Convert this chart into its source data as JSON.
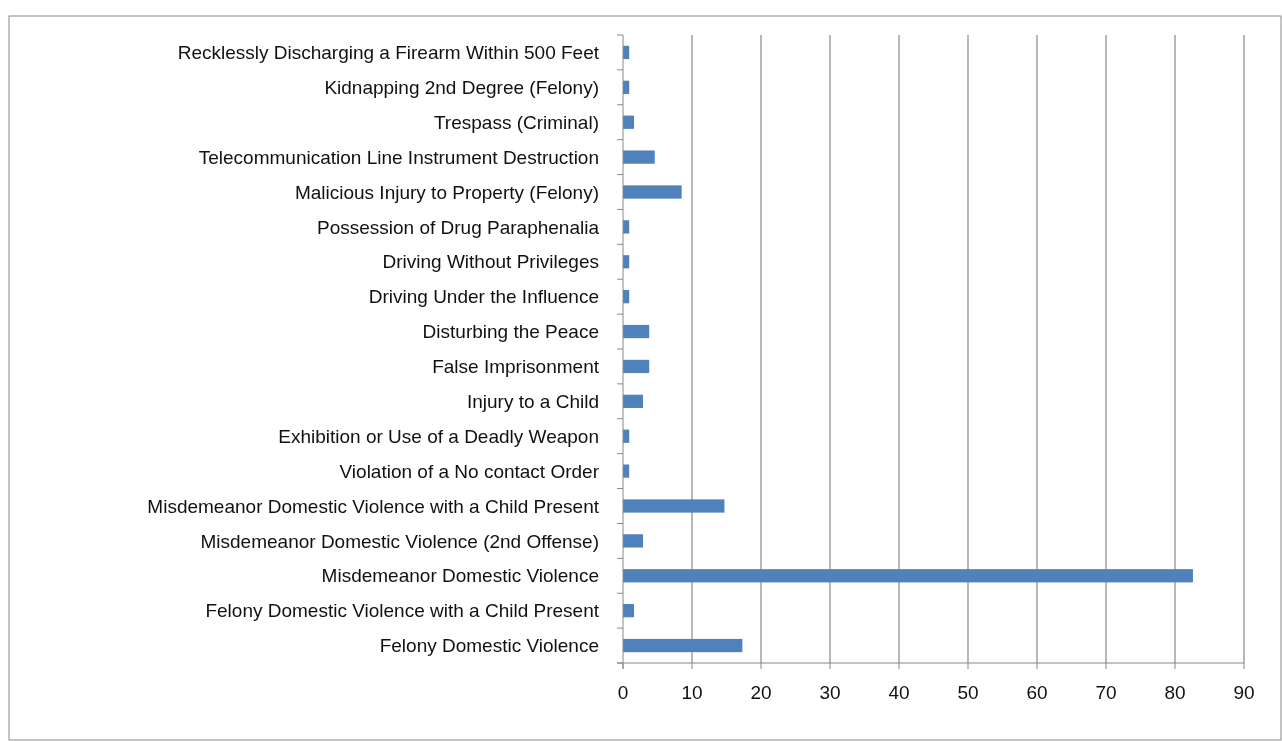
{
  "chart_data": {
    "type": "bar",
    "orientation": "horizontal",
    "categories": [
      "Recklessly Discharging a Firearm Within 500 Feet",
      "Kidnapping  2nd Degree (Felony)",
      "Trespass (Criminal)",
      "Telecommunication Line Instrument Destruction",
      "Malicious Injury to Property (Felony)",
      "Possession of Drug Paraphenalia",
      "Driving Without Privileges",
      "Driving Under the Influence",
      "Disturbing the Peace",
      "False Imprisonment",
      "Injury to a Child",
      "Exhibition or Use of a Deadly Weapon",
      "Violation of a No contact Order",
      "Misdemeanor Domestic Violence with a Child Present",
      "Misdemeanor Domestic Violence (2nd Offense)",
      "Misdemeanor Domestic Violence",
      "Felony Domestic Violence with a Child Present",
      "Felony Domestic Violence"
    ],
    "values": [
      0.9,
      0.9,
      1.6,
      4.6,
      8.5,
      0.9,
      0.9,
      0.9,
      3.8,
      3.8,
      2.9,
      0.9,
      0.9,
      14.7,
      2.9,
      82.6,
      1.6,
      17.3
    ],
    "color": "#4f81bd",
    "xlim": [
      0,
      90
    ],
    "xticks": [
      0,
      10,
      20,
      30,
      40,
      50,
      60,
      70,
      80,
      90
    ],
    "grid": "x"
  }
}
